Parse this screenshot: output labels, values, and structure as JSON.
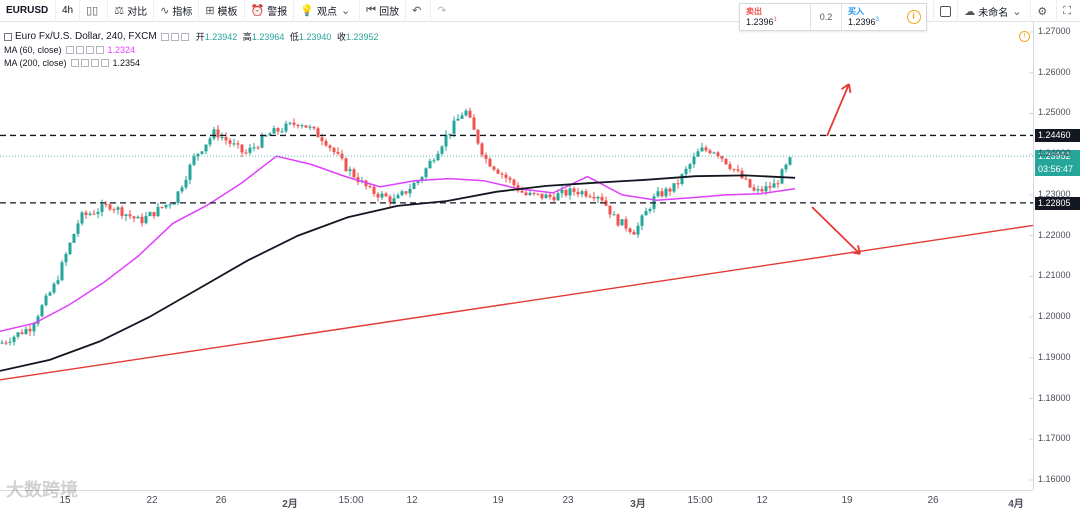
{
  "toolbar": {
    "symbol": "EURUSD",
    "interval": "4h",
    "compare_label": "对比",
    "indicators_label": "指标",
    "templates_label": "模板",
    "alert_label": "警报",
    "ideas_label": "观点",
    "replay_label": "回放",
    "unnamed_label": "未命名",
    "icons": [
      "candles-icon",
      "compare-icon",
      "indicators-icon",
      "templates-icon",
      "alarm-icon",
      "idea-icon",
      "replay-icon",
      "undo-icon",
      "redo-icon",
      "cloud-icon",
      "settings-icon",
      "fullscreen-icon"
    ]
  },
  "trade": {
    "sell_label": "卖出",
    "sell_price": "1.2396",
    "sell_sup": "1",
    "spread": "0.2",
    "buy_label": "买入",
    "buy_price": "1.2396",
    "buy_sup": "3",
    "sell_color": "#ef5350",
    "buy_color": "#2196f3"
  },
  "legend": {
    "title": "Euro Fx/U.S. Dollar, 240, FXCM",
    "open_label": "开",
    "open": "1.23942",
    "high_label": "高",
    "high": "1.23964",
    "low_label": "低",
    "low": "1.23940",
    "close_label": "收",
    "close": "1.23952",
    "ma1_label": "MA (60, close)",
    "ma1_value": "1.2324",
    "ma2_label": "MA (200, close)",
    "ma2_value": "1.2354"
  },
  "watermark": "大数跨境",
  "price_axis": {
    "ticks": [
      "1.27000",
      "1.26000",
      "1.25000",
      "1.24000",
      "1.23000",
      "1.22000",
      "1.21000",
      "1.20000",
      "1.19000",
      "1.18000",
      "1.17000",
      "1.16000"
    ],
    "tag_resistance": "1.24460",
    "tag_current": "1.23952",
    "tag_countdown": "03:56:47",
    "tag_support": "1.22805"
  },
  "time_axis": {
    "labels": [
      "15",
      "22",
      "26",
      "2月",
      "15:00",
      "12",
      "19",
      "23",
      "3月",
      "15:00",
      "12",
      "19",
      "26",
      "4月"
    ]
  },
  "colors": {
    "up": "#26a69a",
    "down": "#ef5350",
    "ma60": "#e040fb",
    "ma200": "#131722",
    "trendline": "#e53935",
    "current_price": "#26a69a"
  },
  "chart_data": {
    "type": "candlestick",
    "symbol": "EURUSD",
    "timeframe": "4h",
    "ylim": [
      1.16,
      1.27
    ],
    "levels": {
      "resistance": 1.2446,
      "support": 1.22805,
      "current": 1.23952
    },
    "trendline": {
      "from": 1.1846,
      "to": 1.2225
    },
    "ma60_path": [
      1.1965,
      1.1985,
      1.203,
      1.2085,
      1.215,
      1.223,
      1.2275,
      1.233,
      1.2395,
      1.2375,
      1.2345,
      1.232,
      1.2335,
      1.234,
      1.2335,
      1.2315,
      1.2305,
      1.2345,
      1.23,
      1.2287,
      1.2293,
      1.23,
      1.2303,
      1.2315
    ],
    "ma200_path": [
      1.1868,
      1.1895,
      1.194,
      1.2,
      1.207,
      1.214,
      1.22,
      1.2245,
      1.2273,
      1.2285,
      1.2308,
      1.2322,
      1.233,
      1.2337,
      1.2346,
      1.2348,
      1.2342
    ]
  }
}
